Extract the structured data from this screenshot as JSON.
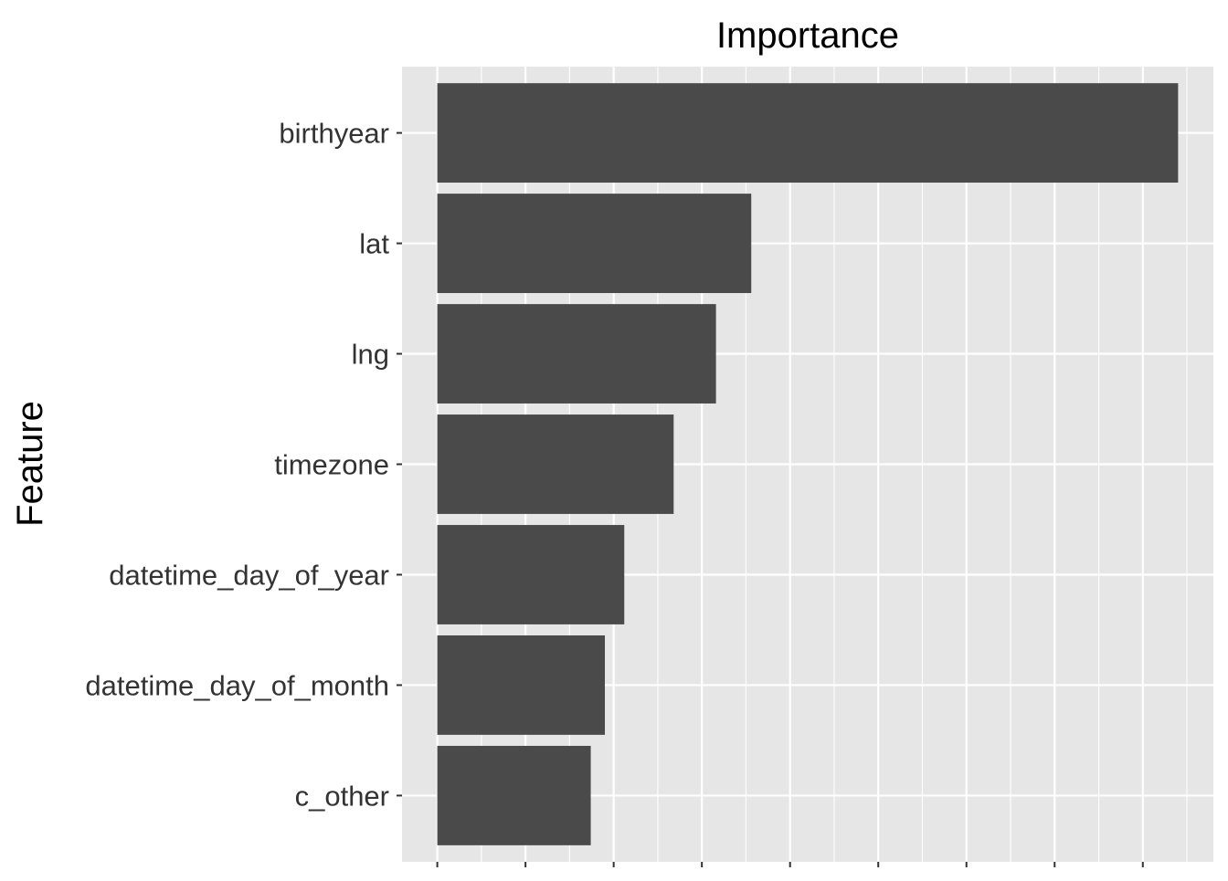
{
  "chart_data": {
    "type": "bar",
    "orientation": "horizontal",
    "title": "Importance",
    "xlabel": "",
    "ylabel": "Feature",
    "categories": [
      "birthyear",
      "lat",
      "lng",
      "timezone",
      "datetime_day_of_year",
      "datetime_day_of_month",
      "c_other"
    ],
    "values": [
      0.42,
      0.178,
      0.158,
      0.134,
      0.106,
      0.095,
      0.087
    ],
    "xlim": [
      -0.02,
      0.44
    ],
    "grid": true,
    "legend": "none",
    "colors": {
      "bar": "#4a4a4a",
      "panel": "#e6e6e6",
      "grid": "#ffffff",
      "text": "#333333",
      "title": "#000000"
    }
  }
}
